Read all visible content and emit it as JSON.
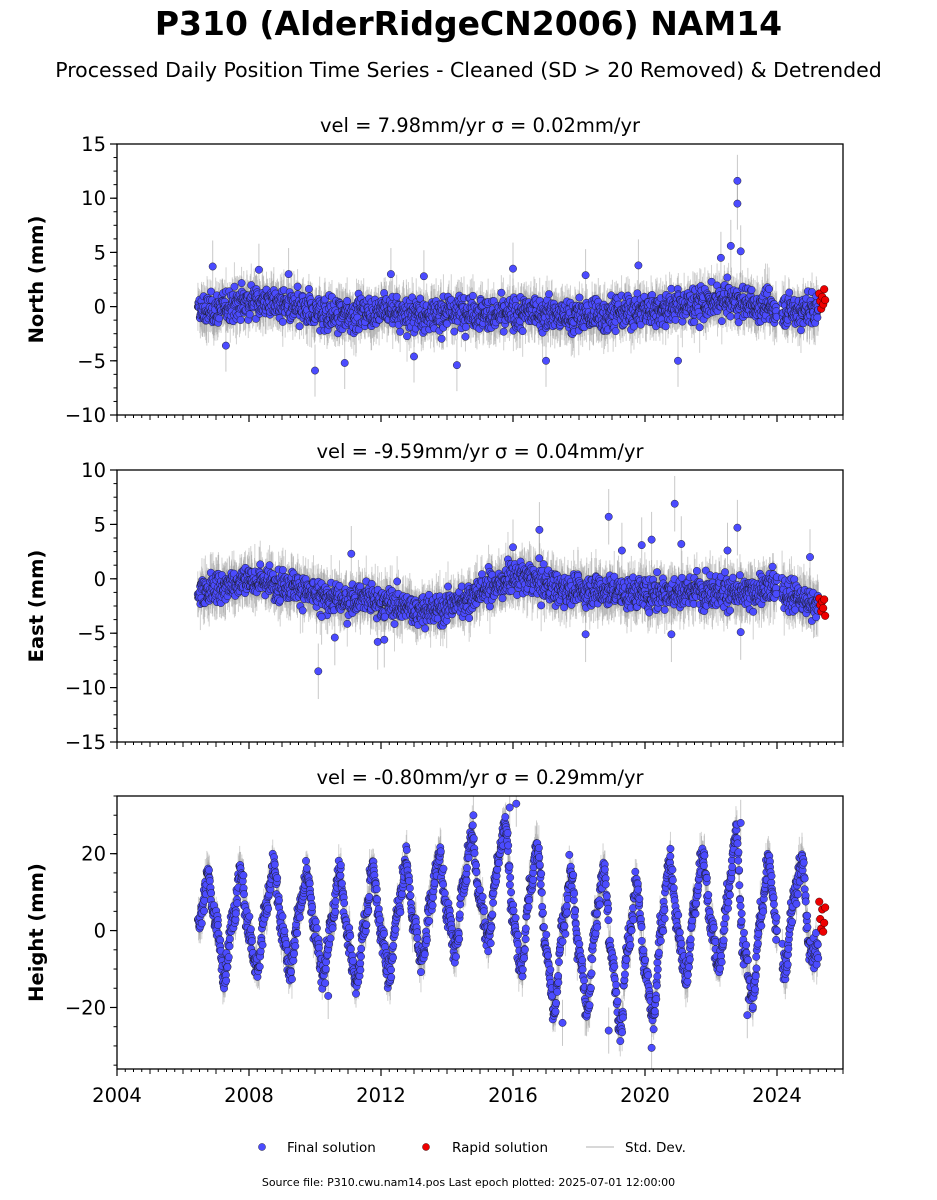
{
  "header": {
    "title": "P310 (AlderRidgeCN2006) NAM14",
    "subtitle": "Processed Daily Position Time Series - Cleaned (SD > 20 Removed) & Detrended"
  },
  "footer": {
    "source": "Source file: P310.cwu.nam14.pos  Last epoch plotted: 2025-07-01 12:00:00"
  },
  "colors": {
    "final": "#4b4bff",
    "rapid": "#ee0000",
    "stddev": "#9a9a9a"
  },
  "chart_data": [
    {
      "type": "scatter",
      "title": "vel = 7.98mm/yr   σ = 0.02mm/yr",
      "ylabel": "North (mm)",
      "xlim": [
        2004,
        2026
      ],
      "ylim": [
        -10,
        15
      ],
      "xticks": [
        "2004",
        "2008",
        "2012",
        "2016",
        "2020",
        "2024"
      ],
      "yticks": [
        -10,
        -5,
        0,
        5,
        10,
        15
      ],
      "ytick_labels": [
        "−10",
        "−5",
        "0",
        "5",
        "10",
        "15"
      ],
      "series": [
        {
          "name": "Final solution",
          "x": [
            2006.5,
            2007.0,
            2007.5,
            2008.0,
            2008.5,
            2009.0,
            2009.5,
            2010.0,
            2010.5,
            2011.0,
            2011.5,
            2012.0,
            2012.5,
            2013.0,
            2013.5,
            2014.0,
            2014.5,
            2015.0,
            2015.5,
            2016.0,
            2016.5,
            2017.0,
            2017.5,
            2018.0,
            2018.5,
            2019.0,
            2019.5,
            2020.0,
            2020.5,
            2021.0,
            2021.5,
            2022.0,
            2022.5,
            2023.0,
            2023.5,
            2024.0,
            2024.5,
            2025.0
          ],
          "y": [
            -0.5,
            -0.3,
            0.2,
            0.6,
            0.5,
            0.2,
            -0.3,
            -0.6,
            -0.8,
            -0.7,
            -0.5,
            -0.4,
            -0.5,
            -0.7,
            -0.8,
            -0.6,
            -0.4,
            -0.6,
            -0.8,
            -0.7,
            -0.5,
            -0.6,
            -0.8,
            -0.9,
            -0.8,
            -0.6,
            -0.5,
            -0.4,
            -0.2,
            0.0,
            0.2,
            0.4,
            0.6,
            0.3,
            0.0,
            -0.3,
            -0.4,
            -0.3
          ],
          "outliers_x": [
            2006.9,
            2008.3,
            2009.2,
            2010.0,
            2010.9,
            2012.3,
            2013.3,
            2014.3,
            2016.0,
            2017.0,
            2018.2,
            2019.8,
            2021.0,
            2022.3,
            2022.6,
            2022.8,
            2022.8,
            2022.9,
            2007.3,
            2013.0
          ],
          "outliers_y": [
            3.7,
            3.4,
            3.0,
            -5.9,
            -5.2,
            3.0,
            2.8,
            -5.4,
            3.5,
            -5.0,
            2.9,
            3.8,
            -5.0,
            4.5,
            5.6,
            11.6,
            9.5,
            5.1,
            -3.6,
            -4.6
          ]
        },
        {
          "name": "Rapid solution",
          "x": [
            2025.28,
            2025.31,
            2025.34,
            2025.37,
            2025.4,
            2025.43,
            2025.46
          ],
          "y": [
            1.2,
            0.5,
            -0.2,
            0.9,
            0.2,
            1.6,
            0.6
          ]
        }
      ]
    },
    {
      "type": "scatter",
      "title": "vel = -9.59mm/yr   σ = 0.04mm/yr",
      "ylabel": "East (mm)",
      "xlim": [
        2004,
        2026
      ],
      "ylim": [
        -15,
        10
      ],
      "xticks": [
        "2004",
        "2008",
        "2012",
        "2016",
        "2020",
        "2024"
      ],
      "yticks": [
        -15,
        -10,
        -5,
        0,
        5,
        10
      ],
      "ytick_labels": [
        "−15",
        "−10",
        "−5",
        "0",
        "5",
        "10"
      ],
      "series": [
        {
          "name": "Final solution",
          "x": [
            2006.5,
            2007.0,
            2007.5,
            2008.0,
            2008.5,
            2009.0,
            2009.5,
            2010.0,
            2010.5,
            2011.0,
            2011.5,
            2012.0,
            2012.5,
            2013.0,
            2013.5,
            2014.0,
            2014.5,
            2015.0,
            2015.5,
            2016.0,
            2016.5,
            2017.0,
            2017.5,
            2018.0,
            2018.5,
            2019.0,
            2019.5,
            2020.0,
            2020.5,
            2021.0,
            2021.5,
            2022.0,
            2022.5,
            2023.0,
            2023.5,
            2024.0,
            2024.5,
            2025.0
          ],
          "y": [
            -1.2,
            -0.9,
            -0.4,
            -0.1,
            -0.2,
            -0.5,
            -0.8,
            -1.5,
            -1.9,
            -2.0,
            -1.8,
            -2.2,
            -2.4,
            -2.8,
            -3.0,
            -2.6,
            -2.0,
            -1.2,
            -0.5,
            0.1,
            0.0,
            -0.6,
            -1.0,
            -1.1,
            -1.0,
            -1.2,
            -1.3,
            -1.4,
            -1.2,
            -1.3,
            -1.1,
            -1.0,
            -1.2,
            -1.5,
            -1.0,
            -0.8,
            -1.6,
            -2.2
          ],
          "outliers_x": [
            2010.1,
            2010.2,
            2010.6,
            2011.1,
            2011.9,
            2012.1,
            2016.0,
            2016.8,
            2018.2,
            2018.9,
            2019.3,
            2019.9,
            2020.2,
            2020.8,
            2020.9,
            2021.1,
            2022.5,
            2022.8,
            2022.9,
            2025.0
          ],
          "outliers_y": [
            -8.5,
            -3.5,
            -5.4,
            2.3,
            -5.8,
            -5.6,
            2.9,
            4.5,
            -5.1,
            5.7,
            2.6,
            3.1,
            3.6,
            -5.1,
            6.9,
            3.2,
            2.6,
            4.7,
            -4.9,
            2.0
          ]
        },
        {
          "name": "Rapid solution",
          "x": [
            2025.28,
            2025.31,
            2025.34,
            2025.37,
            2025.4,
            2025.43,
            2025.46
          ],
          "y": [
            -1.8,
            -2.4,
            -3.0,
            -2.1,
            -2.7,
            -1.9,
            -3.4
          ]
        }
      ]
    },
    {
      "type": "scatter",
      "title": "vel = -0.80mm/yr   σ = 0.29mm/yr",
      "ylabel": "Height (mm)",
      "xlim": [
        2004,
        2026
      ],
      "ylim": [
        -36,
        35
      ],
      "xticks": [
        "2004",
        "2008",
        "2012",
        "2016",
        "2020",
        "2024"
      ],
      "yticks": [
        -20,
        0,
        20
      ],
      "ytick_labels": [
        "−20",
        "0",
        "20"
      ],
      "series": [
        {
          "name": "Final solution",
          "x": [
            2006.5,
            2006.75,
            2007.0,
            2007.25,
            2007.5,
            2007.75,
            2008.0,
            2008.25,
            2008.5,
            2008.75,
            2009.0,
            2009.25,
            2009.5,
            2009.75,
            2010.0,
            2010.25,
            2010.5,
            2010.75,
            2011.0,
            2011.25,
            2011.5,
            2011.75,
            2012.0,
            2012.25,
            2012.5,
            2012.75,
            2013.0,
            2013.25,
            2013.5,
            2013.75,
            2014.0,
            2014.25,
            2014.5,
            2014.75,
            2015.0,
            2015.25,
            2015.5,
            2015.75,
            2016.0,
            2016.25,
            2016.5,
            2016.75,
            2017.0,
            2017.25,
            2017.5,
            2017.75,
            2018.0,
            2018.25,
            2018.5,
            2018.75,
            2019.0,
            2019.25,
            2019.5,
            2019.75,
            2020.0,
            2020.25,
            2020.5,
            2020.75,
            2021.0,
            2021.25,
            2021.5,
            2021.75,
            2022.0,
            2022.25,
            2022.5,
            2022.75,
            2023.0,
            2023.25,
            2023.5,
            2023.75,
            2024.0,
            2024.25,
            2024.5,
            2024.75,
            2025.0
          ],
          "y": [
            2,
            14,
            2,
            -12,
            3,
            15,
            -1,
            -10,
            5,
            17,
            1,
            -10,
            4,
            15,
            0,
            -12,
            2,
            15,
            -2,
            -14,
            1,
            16,
            0,
            -12,
            5,
            18,
            2,
            -8,
            7,
            20,
            5,
            -5,
            12,
            25,
            8,
            -2,
            15,
            28,
            5,
            -10,
            10,
            22,
            -5,
            -22,
            0,
            15,
            -6,
            -20,
            2,
            16,
            -8,
            -25,
            -3,
            12,
            -10,
            -22,
            2,
            18,
            0,
            -12,
            6,
            20,
            2,
            -10,
            8,
            25,
            -5,
            -18,
            3,
            18,
            0,
            -10,
            8,
            18,
            -5
          ],
          "outliers_x": [
            2020.2,
            2020.3,
            2015.9,
            2016.1,
            2014.8,
            2022.9,
            2023.1,
            2010.4,
            2017.5,
            2018.9
          ],
          "outliers_y": [
            -30.5,
            -21,
            32,
            33,
            30,
            28,
            -22,
            -17,
            -24,
            -26
          ]
        },
        {
          "name": "Rapid solution",
          "x": [
            2025.28,
            2025.31,
            2025.34,
            2025.37,
            2025.4,
            2025.43,
            2025.46
          ],
          "y": [
            7.5,
            3.0,
            0.5,
            5.5,
            -0.3,
            2.0,
            6.0
          ]
        }
      ]
    }
  ],
  "legend": {
    "placement": "bottom-center",
    "items": [
      {
        "label": "Final solution",
        "kind": "marker",
        "color_key": "final"
      },
      {
        "label": "Rapid solution",
        "kind": "marker",
        "color_key": "rapid"
      },
      {
        "label": "Std. Dev.",
        "kind": "line",
        "color_key": "stddev"
      }
    ]
  }
}
